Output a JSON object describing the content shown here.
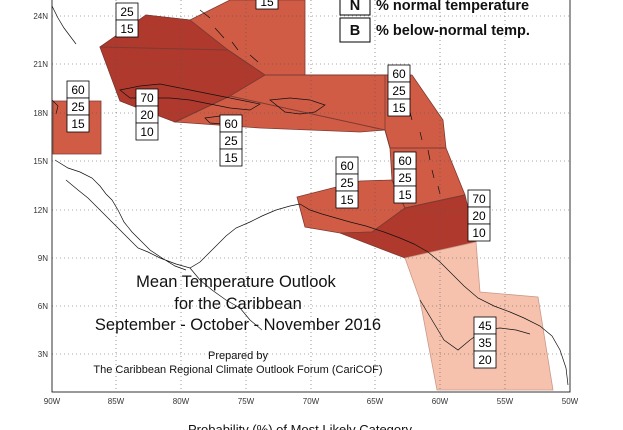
{
  "axes": {
    "lat_labels": [
      "24N",
      "21N",
      "18N",
      "15N",
      "12N",
      "9N",
      "6N",
      "3N"
    ],
    "lon_labels": [
      "90W",
      "85W",
      "80W",
      "75W",
      "70W",
      "65W",
      "60W",
      "55W",
      "50W"
    ]
  },
  "legend": {
    "rows": [
      {
        "key": "N",
        "text": "% normal temperature"
      },
      {
        "key": "B",
        "text": "% below-normal temp."
      }
    ]
  },
  "title": {
    "line1": "Mean Temperature Outlook",
    "line2": "for the Caribbean",
    "line3": "September - October - November 2016"
  },
  "credit": {
    "line1": "Prepared by",
    "line2": "The Caribbean Regional Climate Outlook Forum (CariCOF)"
  },
  "footer": {
    "text": "Probability (%) of Most Likely Category"
  },
  "colors": {
    "dark": "#b0392d",
    "medium": "#d15c46",
    "light": "#f6c2ae"
  },
  "regions": [
    {
      "name": "bahamas-top",
      "values": [
        "",
        "25",
        "15"
      ]
    },
    {
      "name": "bahamas-right",
      "values": [
        "",
        "",
        "15"
      ]
    },
    {
      "name": "belize",
      "values": [
        "60",
        "25",
        "15"
      ]
    },
    {
      "name": "cuba-jamaica",
      "values": [
        "70",
        "20",
        "10"
      ]
    },
    {
      "name": "haiti",
      "values": [
        "60",
        "25",
        "15"
      ]
    },
    {
      "name": "leewards-north",
      "values": [
        "60",
        "25",
        "15"
      ]
    },
    {
      "name": "abc-islands",
      "values": [
        "60",
        "25",
        "15"
      ]
    },
    {
      "name": "windwards",
      "values": [
        "60",
        "25",
        "15"
      ]
    },
    {
      "name": "trinidad-guyana",
      "values": [
        "70",
        "20",
        "10"
      ]
    },
    {
      "name": "suriname-guiana",
      "values": [
        "45",
        "35",
        "20"
      ]
    }
  ]
}
